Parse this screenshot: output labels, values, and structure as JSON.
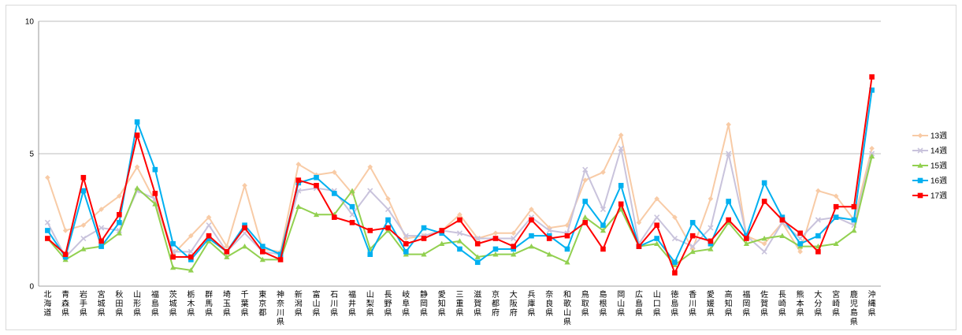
{
  "chart_data": {
    "type": "line",
    "title": "",
    "xlabel": "",
    "ylabel": "",
    "ylim": [
      0,
      10
    ],
    "yticks": [
      0,
      5,
      10
    ],
    "grid": "horizontal major at 5 and 10",
    "legend_position": "right",
    "categories": [
      "北海道",
      "青森県",
      "岩手県",
      "宮城県",
      "秋田県",
      "山形県",
      "福島県",
      "茨城県",
      "栃木県",
      "群馬県",
      "埼玉県",
      "千葉県",
      "東京都",
      "神奈川県",
      "新潟県",
      "富山県",
      "石川県",
      "福井県",
      "山梨県",
      "長野県",
      "岐阜県",
      "静岡県",
      "愛知県",
      "三重県",
      "滋賀県",
      "京都府",
      "大阪府",
      "兵庫県",
      "奈良県",
      "和歌山県",
      "鳥取県",
      "島根県",
      "岡山県",
      "広島県",
      "山口県",
      "徳島県",
      "香川県",
      "愛媛県",
      "高知県",
      "福岡県",
      "佐賀県",
      "長崎県",
      "熊本県",
      "大分県",
      "宮崎県",
      "鹿児島県",
      "沖縄県"
    ],
    "series": [
      {
        "name": "13週",
        "color": "#f8cba6",
        "marker": "diamond",
        "values": [
          4.1,
          2.1,
          2.3,
          2.9,
          3.4,
          4.5,
          3.2,
          1.2,
          1.9,
          2.6,
          1.5,
          3.8,
          1.4,
          1.3,
          4.6,
          4.2,
          4.3,
          3.5,
          4.5,
          3.3,
          1.8,
          1.9,
          2.1,
          2.7,
          1.8,
          2.0,
          2.0,
          2.9,
          2.2,
          2.3,
          4.0,
          4.3,
          5.7,
          2.4,
          3.3,
          2.6,
          1.4,
          3.3,
          6.1,
          1.9,
          1.6,
          2.4,
          1.3,
          3.6,
          3.4,
          2.5,
          5.2
        ]
      },
      {
        "name": "14週",
        "color": "#c9c3dc",
        "marker": "x",
        "values": [
          2.4,
          1.1,
          1.8,
          2.2,
          2.1,
          3.6,
          3.3,
          1.3,
          1.3,
          2.3,
          1.3,
          2.0,
          1.3,
          1.2,
          3.6,
          3.7,
          3.6,
          2.7,
          3.6,
          2.9,
          1.9,
          1.9,
          2.1,
          2.0,
          1.8,
          1.8,
          1.8,
          2.6,
          2.1,
          2.0,
          4.4,
          2.9,
          5.2,
          1.6,
          2.6,
          1.8,
          1.5,
          2.2,
          5.0,
          1.9,
          1.3,
          2.4,
          1.8,
          2.5,
          2.6,
          2.3,
          5.0
        ]
      },
      {
        "name": "15週",
        "color": "#92d050",
        "marker": "triangle",
        "values": [
          1.8,
          1.0,
          1.4,
          1.5,
          2.0,
          3.7,
          3.1,
          0.7,
          0.6,
          1.7,
          1.1,
          1.5,
          1.0,
          1.0,
          3.0,
          2.7,
          2.7,
          3.6,
          1.4,
          2.1,
          1.2,
          1.2,
          1.6,
          1.7,
          1.1,
          1.2,
          1.2,
          1.5,
          1.2,
          0.9,
          2.6,
          2.1,
          2.9,
          1.5,
          1.6,
          0.8,
          1.3,
          1.4,
          2.4,
          1.6,
          1.8,
          1.9,
          1.5,
          1.5,
          1.6,
          2.1,
          4.9
        ]
      },
      {
        "name": "16週",
        "color": "#00b0f0",
        "marker": "square",
        "values": [
          2.1,
          1.1,
          3.6,
          1.5,
          2.4,
          6.2,
          4.4,
          1.6,
          1.0,
          1.8,
          1.3,
          2.3,
          1.5,
          1.2,
          3.9,
          4.1,
          3.5,
          3.0,
          1.2,
          2.5,
          1.3,
          2.2,
          2.0,
          1.4,
          0.9,
          1.4,
          1.4,
          1.9,
          1.9,
          1.4,
          3.2,
          2.3,
          3.8,
          1.5,
          1.8,
          0.9,
          2.4,
          1.6,
          3.2,
          1.9,
          3.9,
          2.6,
          1.6,
          1.9,
          2.6,
          2.5,
          7.4
        ]
      },
      {
        "name": "17週",
        "color": "#ff0000",
        "marker": "square",
        "values": [
          1.8,
          1.2,
          4.1,
          1.7,
          2.7,
          5.7,
          3.5,
          1.1,
          1.1,
          1.9,
          1.3,
          2.2,
          1.3,
          1.0,
          4.0,
          3.8,
          2.6,
          2.4,
          2.1,
          2.2,
          1.6,
          1.8,
          2.1,
          2.5,
          1.6,
          1.8,
          1.5,
          2.5,
          1.8,
          1.9,
          2.4,
          1.4,
          3.1,
          1.5,
          2.3,
          0.5,
          1.9,
          1.7,
          2.5,
          1.8,
          3.2,
          2.5,
          2.0,
          1.3,
          3.0,
          3.0,
          7.9
        ]
      }
    ]
  }
}
